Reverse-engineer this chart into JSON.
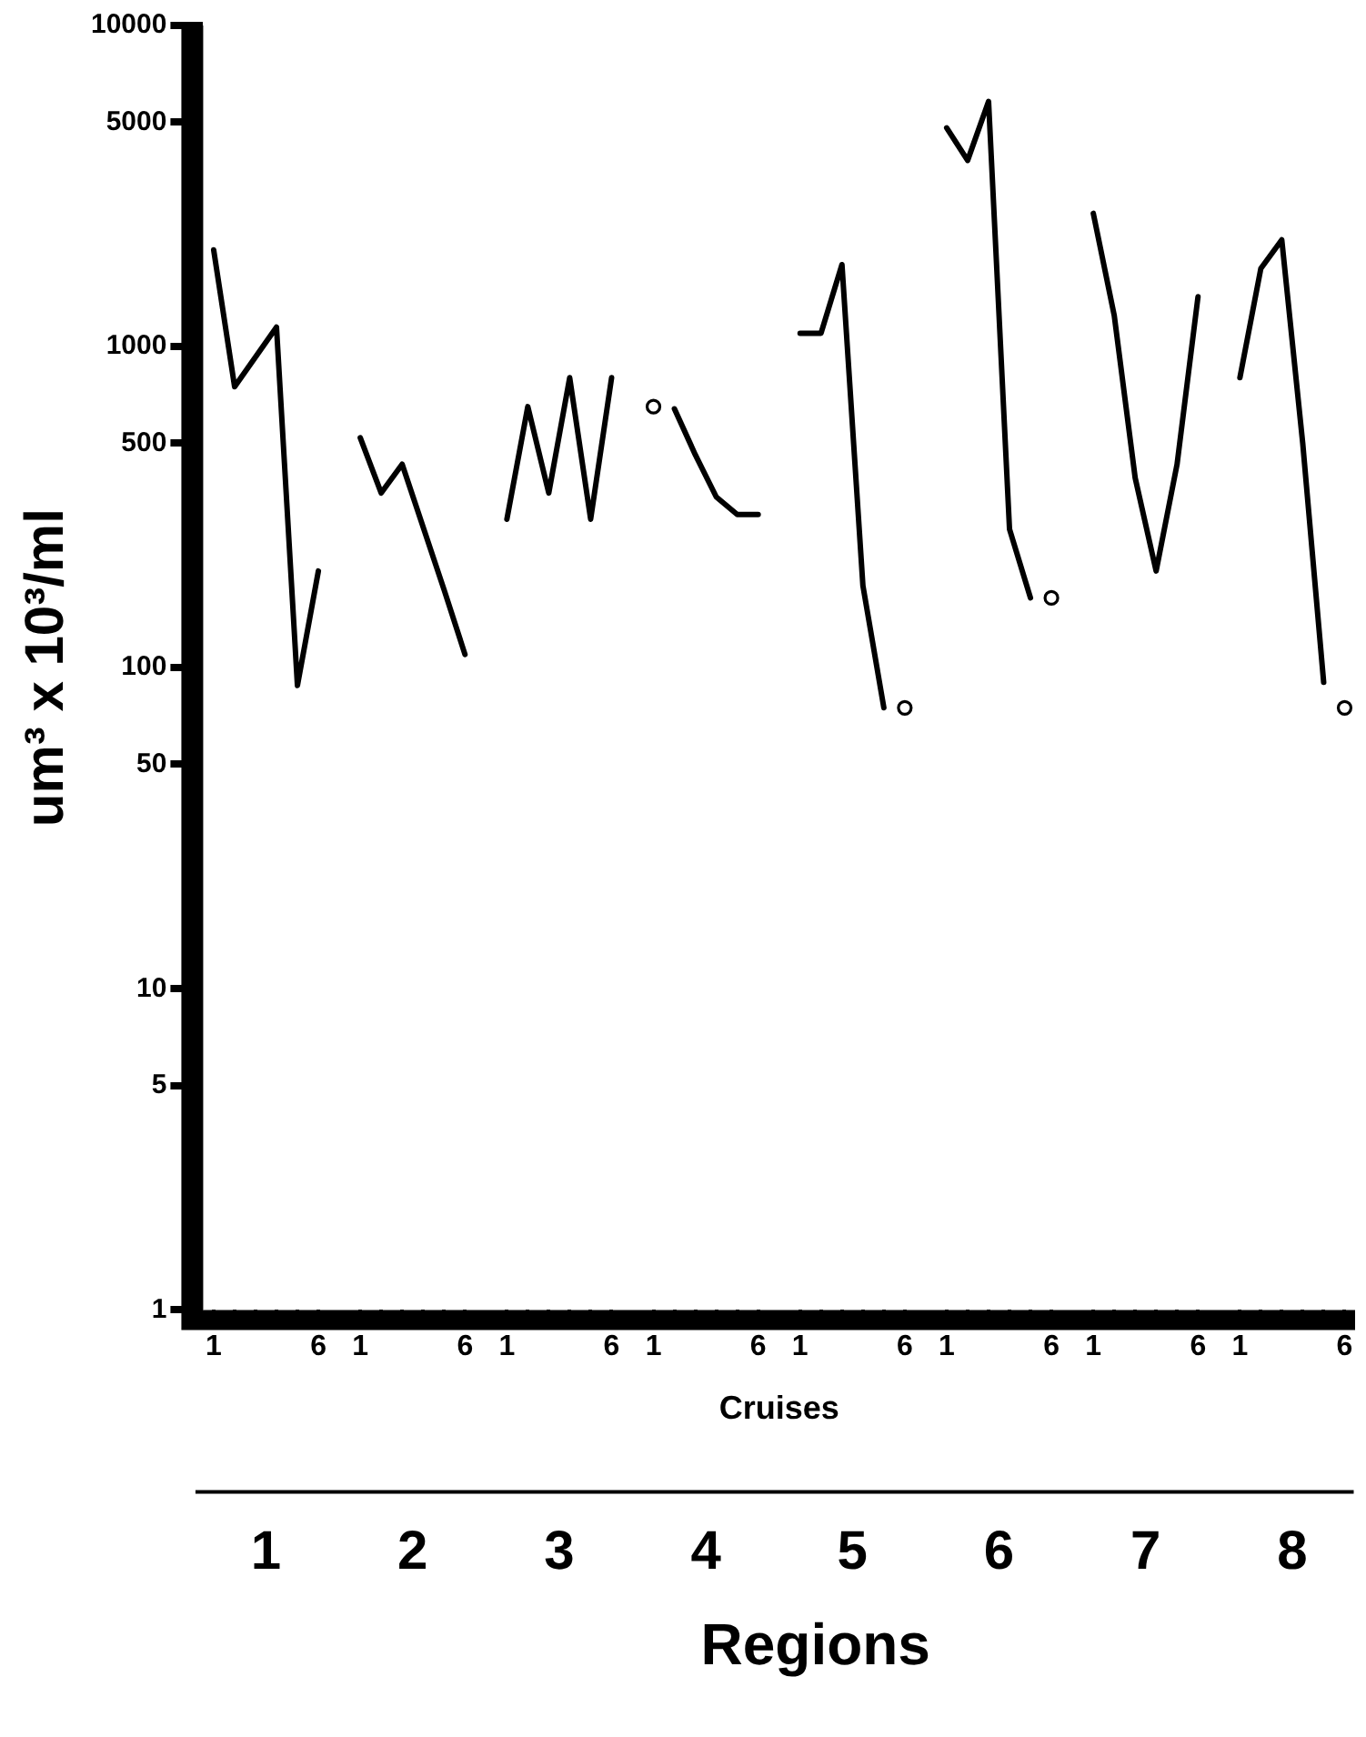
{
  "chart_data": {
    "type": "line",
    "xlabel": "Cruises",
    "ylabel": "um³ x 10³/ml",
    "categories": [
      "1",
      null,
      null,
      null,
      null,
      "6",
      null,
      "1",
      null,
      null,
      null,
      null,
      "6",
      null,
      "1",
      null,
      null,
      null,
      null,
      "6",
      null,
      "1",
      null,
      null,
      null,
      null,
      "6",
      null,
      "1",
      null,
      null,
      null,
      null,
      "6",
      null,
      "1",
      null,
      null,
      null,
      null,
      "6",
      null,
      "1",
      null,
      null,
      null,
      null,
      "6",
      null,
      "1",
      null,
      null,
      null,
      null,
      "6"
    ],
    "series": [
      {
        "color": "#000000",
        "values": [
          2000,
          750,
          null,
          1150,
          88,
          200,
          null,
          null,
          null,
          null,
          null,
          null,
          null,
          null,
          null,
          null,
          null,
          null,
          null,
          null,
          null,
          null,
          null,
          null,
          null,
          null,
          null,
          null,
          null,
          null,
          null,
          null,
          null,
          null,
          null,
          null,
          null,
          null,
          null,
          null,
          null,
          null,
          null,
          null,
          null,
          null,
          null,
          null,
          null,
          null,
          null,
          null,
          null,
          null,
          null
        ]
      },
      {
        "color": "#000000",
        "values": [
          null,
          null,
          null,
          null,
          null,
          null,
          null,
          520,
          350,
          430,
          null,
          175,
          110,
          null,
          null,
          null,
          null,
          null,
          null,
          null,
          null,
          null,
          null,
          null,
          null,
          null,
          null,
          null,
          null,
          null,
          null,
          null,
          null,
          null,
          null,
          null,
          null,
          null,
          null,
          null,
          null,
          null,
          null,
          null,
          null,
          null,
          null,
          null,
          null,
          null,
          null,
          null,
          null,
          null,
          null
        ]
      },
      {
        "color": "#000000",
        "values": [
          null,
          null,
          null,
          null,
          null,
          null,
          null,
          null,
          null,
          null,
          null,
          null,
          null,
          null,
          290,
          650,
          350,
          800,
          290,
          800,
          null,
          null,
          null,
          null,
          null,
          null,
          null,
          null,
          null,
          null,
          null,
          null,
          null,
          null,
          null,
          null,
          null,
          null,
          null,
          null,
          null,
          null,
          null,
          null,
          null,
          null,
          null,
          null,
          null,
          null,
          null,
          null,
          null,
          null,
          null
        ]
      },
      {
        "color": "#000000",
        "values": [
          null,
          null,
          null,
          null,
          null,
          null,
          null,
          null,
          null,
          null,
          null,
          null,
          null,
          null,
          null,
          null,
          null,
          null,
          null,
          null,
          null,
          null,
          640,
          460,
          340,
          300,
          300,
          null,
          null,
          null,
          null,
          null,
          null,
          null,
          null,
          null,
          null,
          null,
          null,
          null,
          null,
          null,
          null,
          null,
          null,
          null,
          null,
          null,
          null,
          null,
          null,
          null,
          null,
          null,
          null
        ]
      },
      {
        "color": "#000000",
        "values": [
          null,
          null,
          null,
          null,
          null,
          null,
          null,
          null,
          null,
          null,
          null,
          null,
          null,
          null,
          null,
          null,
          null,
          null,
          null,
          null,
          null,
          null,
          null,
          null,
          null,
          null,
          null,
          null,
          1100,
          1100,
          1800,
          180,
          75,
          null,
          null,
          null,
          null,
          null,
          null,
          null,
          null,
          null,
          null,
          null,
          null,
          null,
          null,
          null,
          null,
          null,
          null,
          null,
          null,
          null,
          null
        ]
      },
      {
        "color": "#000000",
        "values": [
          null,
          null,
          null,
          null,
          null,
          null,
          null,
          null,
          null,
          null,
          null,
          null,
          null,
          null,
          null,
          null,
          null,
          null,
          null,
          null,
          null,
          null,
          null,
          null,
          null,
          null,
          null,
          null,
          null,
          null,
          null,
          null,
          null,
          null,
          null,
          4800,
          3800,
          5800,
          270,
          165,
          null,
          null,
          null,
          null,
          null,
          null,
          null,
          null,
          null,
          null,
          null,
          null,
          null,
          null,
          null
        ]
      },
      {
        "color": "#000000",
        "values": [
          null,
          null,
          null,
          null,
          null,
          null,
          null,
          null,
          null,
          null,
          null,
          null,
          null,
          null,
          null,
          null,
          null,
          null,
          null,
          null,
          null,
          null,
          null,
          null,
          null,
          null,
          null,
          null,
          null,
          null,
          null,
          null,
          null,
          null,
          null,
          null,
          null,
          null,
          null,
          null,
          null,
          null,
          2600,
          1250,
          390,
          200,
          430,
          1430,
          null,
          null,
          null,
          null,
          null,
          null,
          null
        ]
      },
      {
        "color": "#000000",
        "values": [
          null,
          null,
          null,
          null,
          null,
          null,
          null,
          null,
          null,
          null,
          null,
          null,
          null,
          null,
          null,
          null,
          null,
          null,
          null,
          null,
          null,
          null,
          null,
          null,
          null,
          null,
          null,
          null,
          null,
          null,
          null,
          null,
          null,
          null,
          null,
          null,
          null,
          null,
          null,
          null,
          null,
          null,
          null,
          null,
          null,
          null,
          null,
          null,
          null,
          800,
          1750,
          2150,
          500,
          90,
          null
        ]
      },
      {
        "type": "scatter",
        "marker": "circle",
        "color": "#000000",
        "values": [
          null,
          null,
          null,
          null,
          null,
          null,
          null,
          null,
          null,
          null,
          null,
          null,
          null,
          null,
          null,
          null,
          null,
          null,
          null,
          null,
          null,
          650,
          null,
          null,
          null,
          null,
          null,
          null,
          null,
          null,
          null,
          null,
          null,
          75,
          null,
          null,
          null,
          null,
          null,
          null,
          165,
          null,
          null,
          null,
          null,
          null,
          null,
          null,
          null,
          null,
          null,
          null,
          null,
          null,
          75
        ]
      }
    ],
    "log": "y",
    "ylim": [
      1,
      10000
    ],
    "yticks": [
      1,
      5,
      10,
      50,
      100,
      500,
      1000,
      5000,
      10000
    ],
    "grid": false,
    "legend": false,
    "marker": "none",
    "line_style": "solid",
    "annotations": [
      "1",
      "2",
      "3",
      "4",
      "5",
      "6",
      "7",
      "8",
      "Regions"
    ]
  }
}
